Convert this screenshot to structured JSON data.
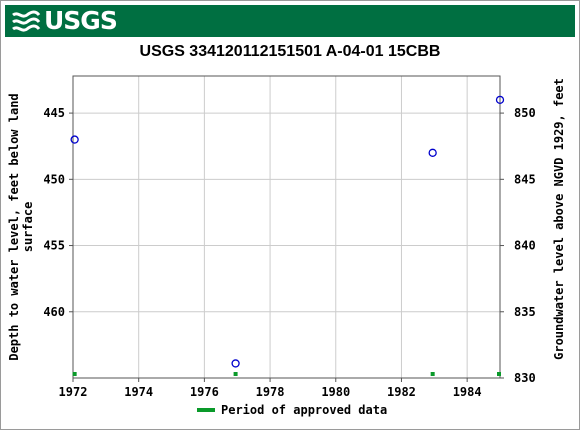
{
  "header": {
    "logo_text": "USGS"
  },
  "chart_data": {
    "type": "scatter",
    "title": "USGS 334120112151501 A-04-01 15CBB",
    "xlabel": "",
    "ylabel_left": "Depth to water level, feet below land surface",
    "ylabel_left_lines": [
      "Depth to water level, feet below land",
      "surface"
    ],
    "ylabel_right": "Groundwater level above NGVD 1929, feet",
    "xlim": [
      1972,
      1985
    ],
    "ylim_left": [
      442.2,
      465
    ],
    "ylim_left_inverted": true,
    "ylim_right": [
      852.8,
      830
    ],
    "x_ticks": [
      1972,
      1974,
      1976,
      1978,
      1980,
      1982,
      1984
    ],
    "y_left_ticks": [
      445,
      450,
      455,
      460
    ],
    "y_right_ticks": [
      850,
      845,
      840,
      835,
      830
    ],
    "grid": true,
    "series": [
      {
        "name": "",
        "marker": "open-circle",
        "color": "#0000cc",
        "points": [
          {
            "x": 1972.05,
            "y": 447.0
          },
          {
            "x": 1976.95,
            "y": 463.9
          },
          {
            "x": 1982.95,
            "y": 448.0
          },
          {
            "x": 1985.0,
            "y": 444.0
          }
        ]
      }
    ],
    "approved_periods": {
      "color": "#0a9a2a",
      "x": [
        1972.05,
        1976.95,
        1982.95,
        1985.0
      ]
    },
    "legend": {
      "position": "bottom-center",
      "entries": [
        {
          "label": "Period of approved data",
          "color": "#0a9a2a"
        }
      ]
    }
  }
}
